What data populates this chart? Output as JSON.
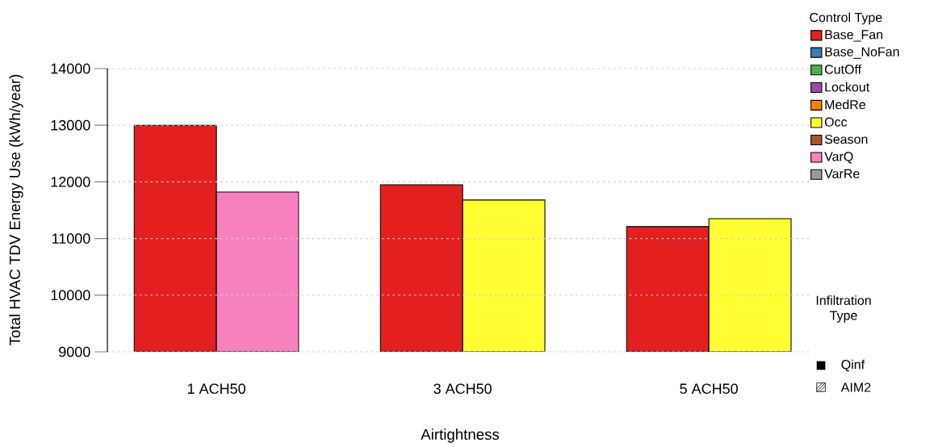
{
  "chart_data": {
    "type": "bar",
    "xlabel": "Airtightness",
    "ylabel": "Total HVAC TDV Energy Use (kWh/year)",
    "legend_title": "Control Type",
    "legend": "top right",
    "grid": "y",
    "categories": [
      "1 ACH50",
      "3 ACH50",
      "5 ACH50"
    ],
    "ylim": [
      9000,
      14000
    ],
    "yticks": [
      9000,
      10000,
      11000,
      12000,
      13000,
      14000
    ],
    "series": [
      {
        "name": "Base_Fan",
        "color": "#e31f1f",
        "values": [
          13000,
          11950,
          11210
        ]
      },
      {
        "name": "Base_NoFan",
        "color": "#377eb8",
        "values": [
          null,
          null,
          null
        ]
      },
      {
        "name": "CutOff",
        "color": "#4daf4a",
        "values": [
          null,
          null,
          null
        ]
      },
      {
        "name": "Lockout",
        "color": "#984ea3",
        "values": [
          null,
          null,
          null
        ]
      },
      {
        "name": "MedRe",
        "color": "#ff7f00",
        "values": [
          null,
          null,
          null
        ]
      },
      {
        "name": "Occ",
        "color": "#ffff33",
        "values": [
          null,
          11680,
          11350
        ]
      },
      {
        "name": "Season",
        "color": "#a65628",
        "values": [
          null,
          null,
          null
        ]
      },
      {
        "name": "VarQ",
        "color": "#f781bf",
        "values": [
          11820,
          null,
          null
        ]
      },
      {
        "name": "VarRe",
        "color": "#999999",
        "values": [
          null,
          null,
          null
        ]
      }
    ],
    "annotations": [
      "Infiltration Type",
      "Qinf",
      "AIM2"
    ]
  }
}
